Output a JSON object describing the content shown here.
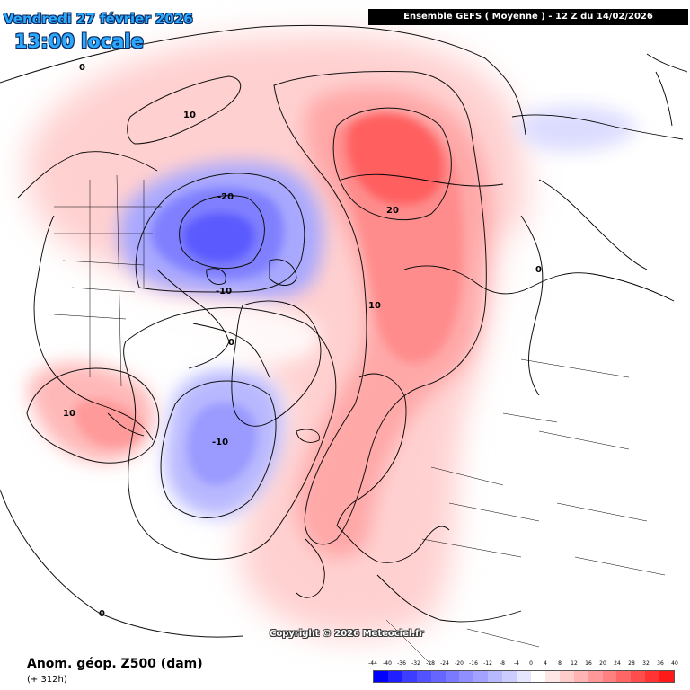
{
  "header": {
    "date": "Vendredi 27 février 2026",
    "local_time": "13:00 locale",
    "model_run": "Ensemble GEFS  ( Moyenne )  -  12 Z du 14/02/2026"
  },
  "footer": {
    "copyright": "Copyright © 2026 Meteociel.fr",
    "variable": "Anom. géop. Z500 (dam)",
    "lead_time": "(+ 312h)"
  },
  "legend": {
    "labels": [
      "-44",
      "-40",
      "-36",
      "-32",
      "-28",
      "-24",
      "-20",
      "-16",
      "-12",
      "-8",
      "-4",
      "0",
      "4",
      "8",
      "12",
      "16",
      "20",
      "24",
      "28",
      "32",
      "36",
      "40"
    ],
    "colors": [
      "#0000ff",
      "#1f1fff",
      "#3d3dff",
      "#5252ff",
      "#6666ff",
      "#7a7aff",
      "#8f8fff",
      "#a3a3ff",
      "#b8b8ff",
      "#ccccff",
      "#e6e6ff",
      "#ffffff",
      "#ffe6e6",
      "#ffcccc",
      "#ffb3b3",
      "#ff9999",
      "#ff8080",
      "#ff6666",
      "#ff4d4d",
      "#ff3333",
      "#ff1a1a"
    ]
  },
  "contour_labels": {
    "c1": "0",
    "c2": "10",
    "c3": "-20",
    "c4": "20",
    "c5": "-10",
    "c6": "0",
    "c7": "10",
    "c8": "10",
    "c9": "-10",
    "c10": "0",
    "c11": "0"
  },
  "colors": {
    "title_blue": "#2aa9ff",
    "positive_anomaly": "#ff4d4d",
    "negative_anomaly": "#5252ff"
  }
}
